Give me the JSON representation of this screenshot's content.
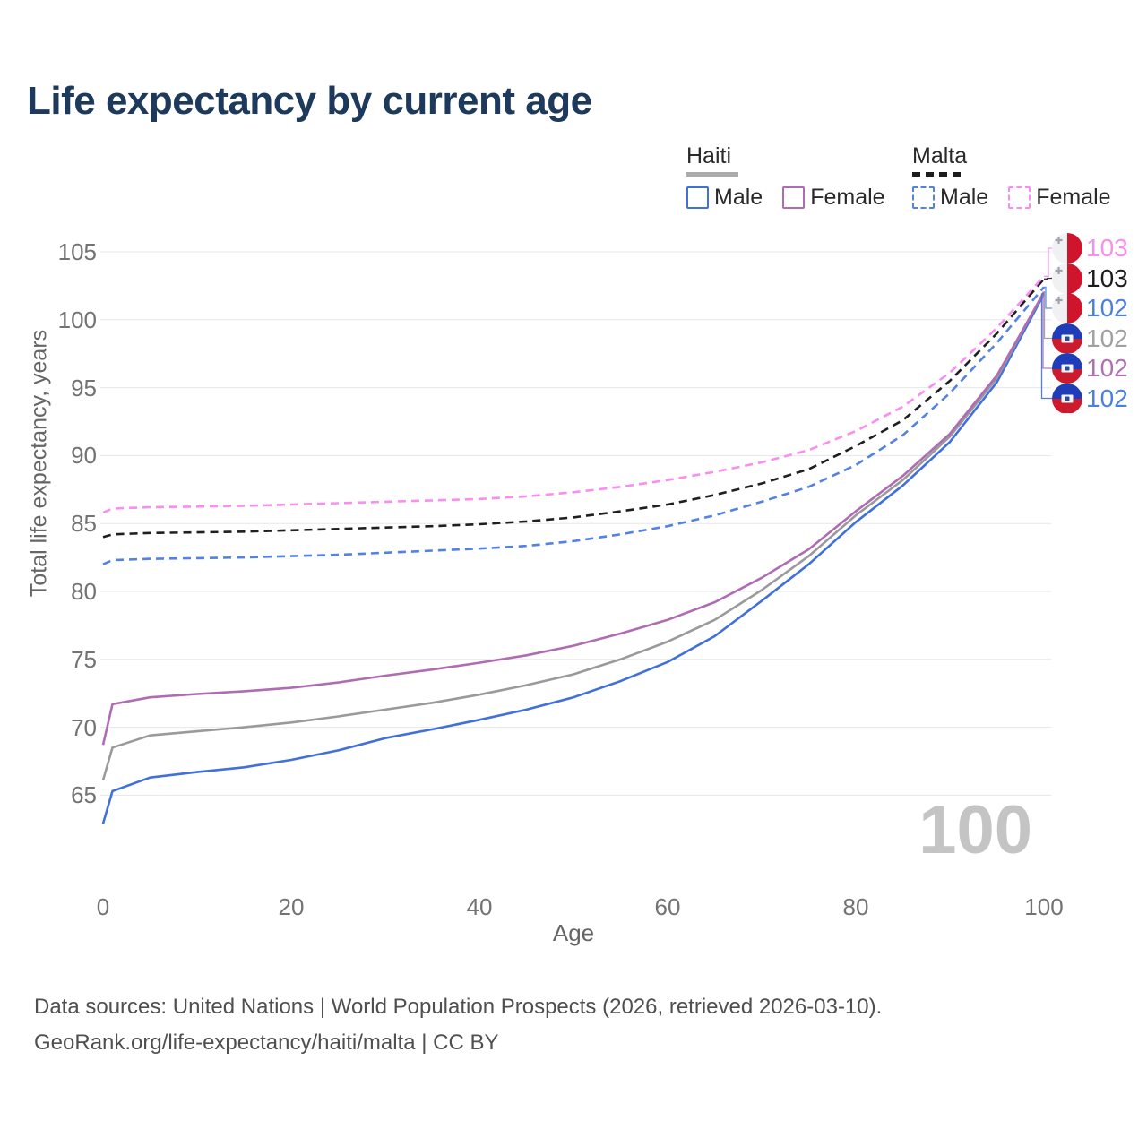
{
  "title": "Life expectancy by current age",
  "legend": {
    "groups": [
      {
        "country": "Haiti",
        "line_style": "solid",
        "swatch_color": "#ababab",
        "items": [
          {
            "label": "Male",
            "color": "#4070da",
            "style": "solid"
          },
          {
            "label": "Female",
            "color": "#af6cb2",
            "style": "solid"
          }
        ]
      },
      {
        "country": "Malta",
        "line_style": "dashed",
        "swatch_color": "#1c1c1c",
        "items": [
          {
            "label": "Male",
            "color": "#5282e4",
            "style": "dashed"
          },
          {
            "label": "Female",
            "color": "#f98df0",
            "style": "dashed"
          }
        ]
      }
    ]
  },
  "chart_data": {
    "type": "line",
    "title": "Life expectancy by current age",
    "xlabel": "Age",
    "ylabel": "Total life expectancy, years",
    "xlim": [
      0,
      100
    ],
    "ylim": [
      62,
      106
    ],
    "xticks": [
      0,
      20,
      40,
      60,
      80,
      100
    ],
    "yticks": [
      65,
      70,
      75,
      80,
      85,
      90,
      95,
      100,
      105
    ],
    "grid": "horizontal",
    "legend_position": "top-right",
    "watermark": "100",
    "x": [
      0,
      1,
      5,
      10,
      15,
      20,
      25,
      30,
      35,
      40,
      45,
      50,
      55,
      60,
      65,
      70,
      75,
      80,
      85,
      90,
      95,
      100
    ],
    "series": [
      {
        "name": "Malta Female",
        "country": "Malta",
        "flag": "malta",
        "dashed": true,
        "color": "#f98df0",
        "end_label": "103",
        "end_label_color": "#f98df0",
        "values": [
          85.8,
          86.1,
          86.2,
          86.25,
          86.3,
          86.4,
          86.5,
          86.6,
          86.7,
          86.8,
          87.0,
          87.3,
          87.7,
          88.2,
          88.8,
          89.5,
          90.4,
          91.8,
          93.6,
          96.1,
          99.4,
          103.2
        ]
      },
      {
        "name": "Malta Both sexes",
        "country": "Malta",
        "flag": "malta",
        "dashed": true,
        "color": "#1f1f1f",
        "end_label": "103",
        "end_label_color": "#1c1c1c",
        "values": [
          84.0,
          84.2,
          84.3,
          84.35,
          84.4,
          84.5,
          84.6,
          84.7,
          84.8,
          84.95,
          85.15,
          85.45,
          85.9,
          86.4,
          87.1,
          87.95,
          89.0,
          90.7,
          92.6,
          95.5,
          99.0,
          103.0
        ]
      },
      {
        "name": "Malta Male",
        "country": "Malta",
        "flag": "malta",
        "dashed": true,
        "color": "#5282e4",
        "end_label": "102",
        "end_label_color": "#4a7fe0",
        "values": [
          82.0,
          82.3,
          82.4,
          82.45,
          82.5,
          82.6,
          82.7,
          82.85,
          83.0,
          83.15,
          83.35,
          83.7,
          84.2,
          84.8,
          85.6,
          86.6,
          87.7,
          89.3,
          91.5,
          94.6,
          98.3,
          102.4
        ]
      },
      {
        "name": "Haiti Both sexes",
        "country": "Haiti",
        "flag": "haiti",
        "dashed": false,
        "color": "#9a9a9a",
        "end_label": "102",
        "end_label_color": "#a0a0a0",
        "values": [
          66.1,
          68.5,
          69.4,
          69.7,
          70.0,
          70.35,
          70.8,
          71.3,
          71.8,
          72.4,
          73.1,
          73.9,
          75.0,
          76.3,
          77.9,
          80.1,
          82.6,
          85.6,
          88.2,
          91.4,
          95.7,
          102.05
        ]
      },
      {
        "name": "Haiti Female",
        "country": "Haiti",
        "flag": "haiti",
        "dashed": false,
        "color": "#af6cb2",
        "end_label": "102",
        "end_label_color": "#b06fb3",
        "values": [
          68.7,
          71.7,
          72.2,
          72.45,
          72.65,
          72.9,
          73.3,
          73.8,
          74.25,
          74.75,
          75.3,
          76.0,
          76.9,
          77.9,
          79.2,
          81.0,
          83.1,
          85.9,
          88.5,
          91.6,
          95.9,
          102.0
        ]
      },
      {
        "name": "Haiti Male",
        "country": "Haiti",
        "flag": "haiti",
        "dashed": false,
        "color": "#4070da",
        "end_label": "102",
        "end_label_color": "#4a7fe0",
        "values": [
          62.9,
          65.3,
          66.3,
          66.7,
          67.05,
          67.6,
          68.3,
          69.2,
          69.85,
          70.55,
          71.3,
          72.2,
          73.4,
          74.8,
          76.7,
          79.3,
          82.0,
          85.1,
          87.8,
          91.0,
          95.4,
          101.9
        ]
      }
    ]
  },
  "icons": {
    "malta_cross": "✚"
  },
  "colors": {
    "title": "#1d3a5c",
    "grid": "#e7e7e7",
    "tick_label": "#737373",
    "axis_title": "#666666",
    "watermark": "#c4c4c4",
    "footer": "#4f4f4f",
    "malta_flag_white": "#f1f1f3",
    "malta_flag_red": "#cf142b",
    "haiti_flag_blue": "#1f3db8",
    "haiti_flag_red": "#cc1b2e"
  },
  "footer": {
    "line1": "Data sources: United Nations | World Population Prospects (2026, retrieved 2026-03-10).",
    "line2": "GeoRank.org/life-expectancy/haiti/malta | CC BY"
  }
}
